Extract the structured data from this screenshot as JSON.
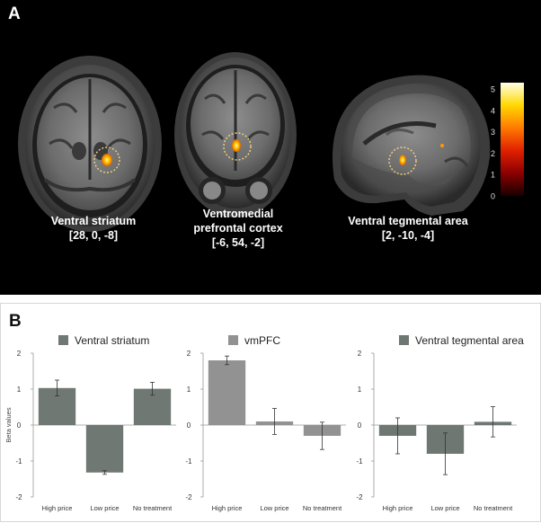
{
  "panel_a": {
    "label": "A",
    "captions": [
      {
        "line1": "Ventral striatum",
        "line2": "[28, 0, -8]"
      },
      {
        "line1": "Ventromedial",
        "line2": "prefrontal cortex",
        "line3": "[-6, 54, -2]"
      },
      {
        "line1": "Ventral tegmental area",
        "line2": "[2, -10, -4]"
      }
    ],
    "colorbar": {
      "ticks": [
        "5",
        "4",
        "3",
        "2",
        "1",
        "0"
      ],
      "tick_values": [
        5,
        4,
        3,
        2,
        1,
        0
      ],
      "min": 0,
      "max": 5.3,
      "colors": [
        "#1a0000",
        "#8b0000",
        "#e02000",
        "#ff7a00",
        "#ffd800",
        "#ffffe8"
      ]
    }
  },
  "panel_b": {
    "label": "B"
  },
  "chart_data": [
    {
      "type": "bar",
      "title": "Ventral striatum",
      "ylabel": "Beta values",
      "categories": [
        "High price",
        "Low price",
        "No treatment"
      ],
      "values": [
        1.03,
        -1.32,
        1.01
      ],
      "error": [
        0.22,
        0.05,
        0.18
      ],
      "ylim": [
        -2,
        2
      ],
      "yticks": [
        "2",
        "1",
        "0",
        "-1",
        "-2"
      ],
      "ytick_values": [
        2,
        1,
        0,
        -1,
        -2
      ],
      "color": "#6f7873"
    },
    {
      "type": "bar",
      "title": "vmPFC",
      "ylabel": "",
      "categories": [
        "High price",
        "Low price",
        "No treatment"
      ],
      "values": [
        1.8,
        0.1,
        -0.3
      ],
      "error": [
        0.12,
        0.36,
        0.38
      ],
      "ylim": [
        -2,
        2
      ],
      "yticks": [
        "2",
        "1",
        "0",
        "-1",
        "-2"
      ],
      "ytick_values": [
        2,
        1,
        0,
        -1,
        -2
      ],
      "color": "#929292"
    },
    {
      "type": "bar",
      "title": "Ventral tegmental area",
      "ylabel": "",
      "categories": [
        "High price",
        "Low price",
        "No treatment"
      ],
      "values": [
        -0.3,
        -0.8,
        0.09
      ],
      "error": [
        0.5,
        0.58,
        0.42
      ],
      "ylim": [
        -2,
        2
      ],
      "yticks": [
        "2",
        "1",
        "0",
        "-1",
        "-2"
      ],
      "ytick_values": [
        2,
        1,
        0,
        -1,
        -2
      ],
      "color": "#6e7772"
    }
  ]
}
